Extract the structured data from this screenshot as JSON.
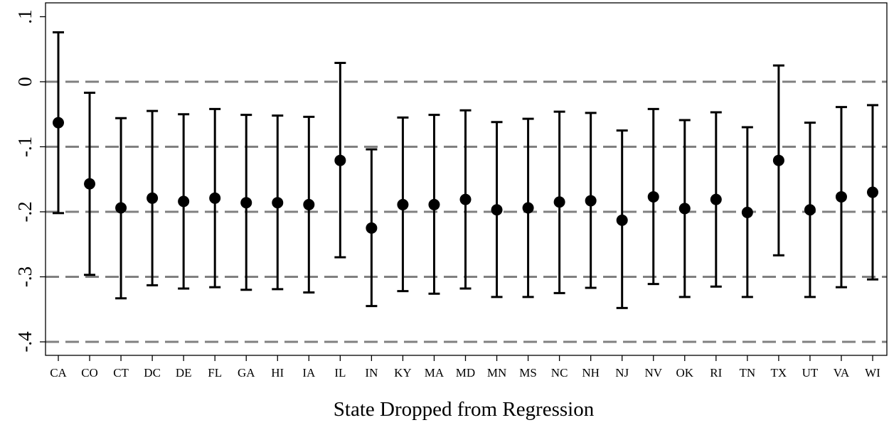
{
  "chart_data": {
    "type": "scatter",
    "title": "",
    "xlabel": "State Dropped from Regression",
    "ylabel": "",
    "ylim": [
      -0.42,
      0.11
    ],
    "yticks": [
      0.1,
      0,
      -0.1,
      -0.2,
      -0.3,
      -0.4
    ],
    "ytick_labels": [
      ".1",
      "0",
      "-.1",
      "-.2",
      "-.3",
      "-.4"
    ],
    "reference_lines": [
      0,
      -0.1,
      -0.2,
      -0.3,
      -0.4
    ],
    "categories": [
      "CA",
      "CO",
      "CT",
      "DC",
      "DE",
      "FL",
      "GA",
      "HI",
      "IA",
      "IL",
      "IN",
      "KY",
      "MA",
      "MD",
      "MN",
      "MS",
      "NC",
      "NH",
      "NJ",
      "NV",
      "OK",
      "RI",
      "TN",
      "TX",
      "UT",
      "VA",
      "WI"
    ],
    "series": [
      {
        "values": [
          -0.063,
          -0.157,
          -0.194,
          -0.179,
          -0.184,
          -0.179,
          -0.186,
          -0.186,
          -0.189,
          -0.121,
          -0.225,
          -0.189,
          -0.189,
          -0.181,
          -0.197,
          -0.194,
          -0.185,
          -0.183,
          -0.213,
          -0.177,
          -0.195,
          -0.181,
          -0.201,
          -0.121,
          -0.197,
          -0.177,
          -0.17
        ],
        "ci_lower": [
          -0.202,
          -0.297,
          -0.333,
          -0.313,
          -0.318,
          -0.316,
          -0.32,
          -0.319,
          -0.324,
          -0.27,
          -0.345,
          -0.322,
          -0.326,
          -0.318,
          -0.331,
          -0.331,
          -0.325,
          -0.317,
          -0.348,
          -0.311,
          -0.331,
          -0.315,
          -0.331,
          -0.267,
          -0.331,
          -0.316,
          -0.304
        ],
        "ci_upper": [
          0.076,
          -0.017,
          -0.056,
          -0.045,
          -0.05,
          -0.042,
          -0.051,
          -0.052,
          -0.054,
          0.029,
          -0.104,
          -0.055,
          -0.051,
          -0.044,
          -0.062,
          -0.057,
          -0.046,
          -0.048,
          -0.075,
          -0.042,
          -0.059,
          -0.047,
          -0.07,
          0.025,
          -0.063,
          -0.039,
          -0.036
        ]
      }
    ],
    "grid": false,
    "legend": "none"
  },
  "colors": {
    "marker": "#000000",
    "reference_line": "#808080",
    "axis": "#000000"
  }
}
